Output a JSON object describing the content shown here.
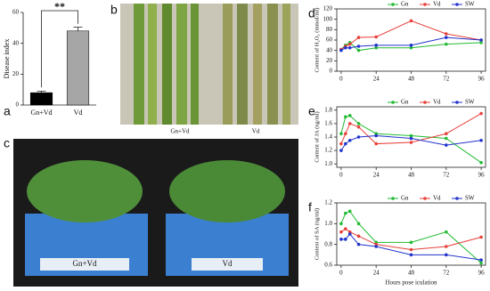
{
  "chart_data": [
    {
      "type": "bar",
      "letter": "a",
      "y_label": "Disease index",
      "categories": [
        "Gn+Vd",
        "Vd"
      ],
      "values": [
        8,
        48
      ],
      "errors": [
        1,
        2.5
      ],
      "colors": [
        "#000000",
        "#a6a6a6"
      ],
      "ylim": [
        0,
        60
      ],
      "yticks": [
        0,
        20,
        40,
        60
      ],
      "significance": "**"
    },
    {
      "type": "line",
      "letter": "d",
      "y_label": "Content of H₂O₂ (mmol/ml)",
      "x": [
        0,
        3,
        6,
        12,
        24,
        48,
        72,
        96
      ],
      "xlim": [
        -3,
        99
      ],
      "xticks": [
        0,
        24,
        48,
        72,
        96
      ],
      "ylim": [
        0,
        120
      ],
      "yticks": [
        0,
        20,
        40,
        60,
        80,
        100,
        120
      ],
      "legend": "upper right",
      "series": [
        {
          "name": "Gn",
          "color": "#22bb33",
          "values": [
            42,
            50,
            55,
            40,
            45,
            45,
            52,
            55
          ]
        },
        {
          "name": "Vd",
          "color": "#e8403a",
          "values": [
            42,
            48,
            52,
            65,
            66,
            97,
            72,
            60
          ]
        },
        {
          "name": "SW",
          "color": "#2233cc",
          "values": [
            40,
            45,
            45,
            48,
            50,
            50,
            65,
            60
          ]
        }
      ]
    },
    {
      "type": "line",
      "letter": "e",
      "y_label": "Content of JA (ng/ml)",
      "x": [
        0,
        3,
        6,
        12,
        24,
        48,
        72,
        96
      ],
      "xlim": [
        -3,
        99
      ],
      "xticks": [
        0,
        24,
        48,
        72,
        96
      ],
      "ylim": [
        0.95,
        1.85
      ],
      "yticks": [
        {
          "value": 1,
          "label": "1.0"
        },
        1.2,
        1.4,
        1.6,
        1.8
      ],
      "legend": "upper right",
      "series": [
        {
          "name": "Gn",
          "color": "#22bb33",
          "values": [
            1.45,
            1.7,
            1.72,
            1.6,
            1.45,
            1.42,
            1.38,
            1.02
          ]
        },
        {
          "name": "Vd",
          "color": "#e8403a",
          "values": [
            1.3,
            1.45,
            1.6,
            1.55,
            1.3,
            1.32,
            1.45,
            1.75
          ]
        },
        {
          "name": "SW",
          "color": "#2233cc",
          "values": [
            1.2,
            1.3,
            1.35,
            1.4,
            1.42,
            1.38,
            1.28,
            1.35
          ]
        }
      ]
    },
    {
      "type": "line",
      "letter": "f",
      "y_label": "Content of SA (ng/ml)",
      "x_label": "Hours pose iculation",
      "x": [
        0,
        3,
        6,
        12,
        24,
        48,
        72,
        96
      ],
      "xlim": [
        -3,
        99
      ],
      "xticks": [
        0,
        24,
        48,
        72,
        96
      ],
      "ylim": [
        0.6,
        1.2
      ],
      "yticks": [
        0.6,
        0.8,
        {
          "value": 1,
          "label": "1.0"
        },
        1.2
      ],
      "legend": "upper right",
      "series": [
        {
          "name": "Gn",
          "color": "#22bb33",
          "values": [
            1.0,
            1.1,
            1.12,
            1.0,
            0.82,
            0.82,
            0.92,
            0.62
          ]
        },
        {
          "name": "Vd",
          "color": "#e8403a",
          "values": [
            0.92,
            0.95,
            0.92,
            0.88,
            0.8,
            0.75,
            0.78,
            0.87
          ]
        },
        {
          "name": "SW",
          "color": "#2233cc",
          "values": [
            0.85,
            0.85,
            0.9,
            0.8,
            0.78,
            0.7,
            0.7,
            0.65
          ]
        }
      ]
    }
  ],
  "photos": [
    {
      "letter": "b",
      "labels": [
        "Gn+Vd",
        "Vd"
      ]
    },
    {
      "letter": "c",
      "labels": [
        "Gn+Vd",
        "Vd"
      ]
    }
  ]
}
